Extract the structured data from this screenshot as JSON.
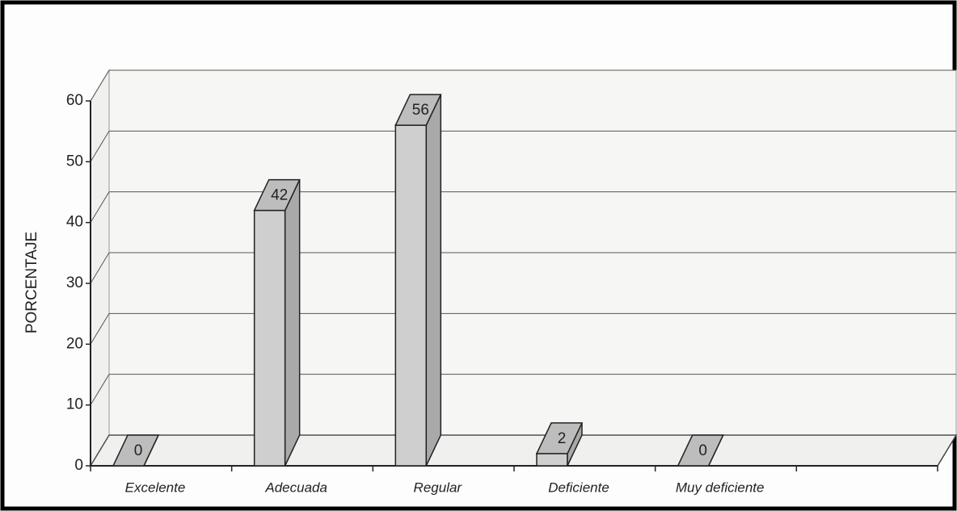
{
  "chart_data": {
    "type": "bar3d",
    "y_label": "PORCENTAJE",
    "categories": [
      "Excelente",
      "Adecuada",
      "Regular",
      "Deficiente",
      "Muy deficiente",
      null
    ],
    "values": [
      0,
      42,
      56,
      2,
      0,
      null
    ],
    "color": "#cfcfcf",
    "ylim": [
      0,
      60
    ],
    "yticks": [
      0,
      10,
      20,
      30,
      40,
      50,
      60
    ],
    "grid": true
  }
}
